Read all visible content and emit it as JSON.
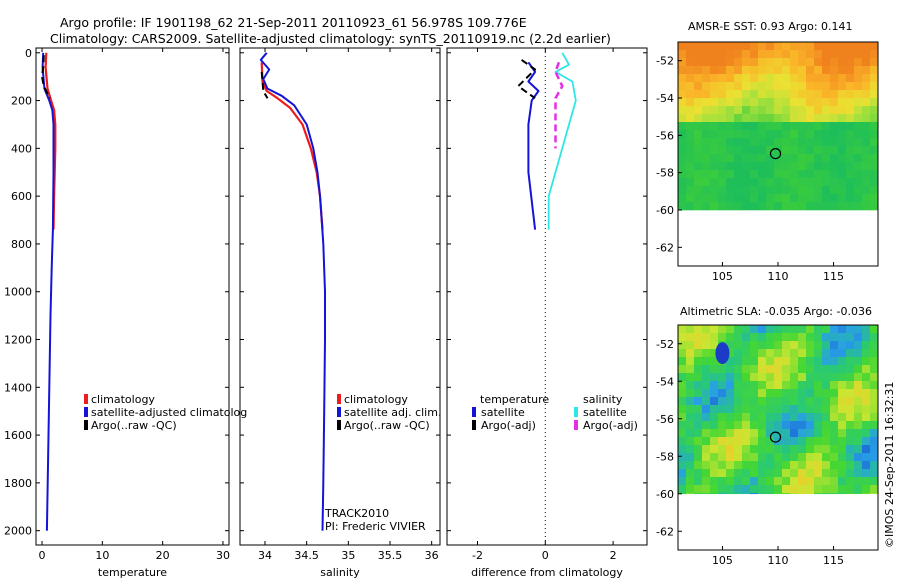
{
  "header": {
    "line1": "Argo profile: IF 1901198_62 21-Sep-2011 20110923_61 56.978S 109.776E",
    "line2": "Climatology: CARS2009. Satellite-adjusted climatology: synTS_20110919.nc (2.2d earlier)"
  },
  "colors": {
    "climatology": "#ee1c1c",
    "satellite": "#1414d6",
    "argo": "#000000",
    "sal_satellite": "#2ee6e6",
    "sal_argo": "#e62ee6"
  },
  "legend_temp": [
    "climatology",
    "satellite-adjusted climatolog",
    "Argo(..raw -QC)"
  ],
  "legend_sal": [
    "climatology",
    "satellite adj. clim.",
    "Argo(..raw -QC)"
  ],
  "legend_diff": {
    "temp_header": "temperature",
    "sal_header": "salinity",
    "temp_items": [
      "satellite",
      "Argo(-adj)"
    ],
    "sal_items": [
      "satellite",
      "Argo(-adj)"
    ]
  },
  "track_note": {
    "line1": "TRACK2010",
    "line2": "PI: Frederic VIVIER"
  },
  "map_sst": {
    "title": "AMSR-E SST: 0.93 Argo: 0.141"
  },
  "map_sla": {
    "title": "Altimetric SLA: -0.035 Argo: -0.036"
  },
  "stamp": "©IMOS 24-Sep-2011 16:32:31",
  "chart_data": [
    {
      "type": "line",
      "title": "",
      "xlabel": "temperature",
      "ylabel": "",
      "xlim": [
        -1,
        31
      ],
      "ylim": [
        2060,
        -20
      ],
      "xticks": [
        0,
        10,
        20,
        30
      ],
      "yticks": [
        0,
        200,
        400,
        600,
        800,
        1000,
        1200,
        1400,
        1600,
        1800,
        2000
      ],
      "series": [
        {
          "name": "climatology",
          "color": "#ee1c1c",
          "width": 2.2,
          "points": [
            [
              0.7,
              0
            ],
            [
              0.6,
              60
            ],
            [
              0.9,
              150
            ],
            [
              1.5,
              200
            ],
            [
              2.0,
              240
            ],
            [
              2.2,
              300
            ],
            [
              2.2,
              400
            ],
            [
              2.1,
              500
            ],
            [
              2.0,
              600
            ],
            [
              1.9,
              740
            ]
          ]
        },
        {
          "name": "satellite-adjusted climatology",
          "color": "#1414d6",
          "width": 2,
          "points": [
            [
              0.2,
              0
            ],
            [
              0.1,
              60
            ],
            [
              0.4,
              150
            ],
            [
              1.2,
              200
            ],
            [
              1.7,
              240
            ],
            [
              1.9,
              300
            ],
            [
              1.9,
              500
            ],
            [
              1.8,
              740
            ],
            [
              1.6,
              900
            ],
            [
              1.4,
              1100
            ],
            [
              1.2,
              1400
            ],
            [
              1.0,
              1700
            ],
            [
              0.8,
              2000
            ]
          ]
        },
        {
          "name": "Argo(..raw -QC)",
          "color": "#000000",
          "width": 2,
          "dash": "7,4",
          "points": [
            [
              0.3,
              10
            ],
            [
              0.2,
              60
            ],
            [
              0.0,
              100
            ],
            [
              0.3,
              140
            ],
            [
              1.3,
              190
            ]
          ]
        }
      ]
    },
    {
      "type": "line",
      "title": "",
      "xlabel": "salinity",
      "ylabel": "",
      "xlim": [
        33.7,
        36.1
      ],
      "ylim": [
        2060,
        -20
      ],
      "xticks": [
        34,
        34.5,
        35,
        35.5,
        36
      ],
      "series": [
        {
          "name": "climatology",
          "color": "#ee1c1c",
          "width": 2.2,
          "points": [
            [
              33.96,
              40
            ],
            [
              33.97,
              120
            ],
            [
              34.02,
              160
            ],
            [
              34.15,
              190
            ],
            [
              34.3,
              230
            ],
            [
              34.45,
              300
            ],
            [
              34.55,
              400
            ],
            [
              34.62,
              500
            ],
            [
              34.66,
              600
            ],
            [
              34.69,
              740
            ]
          ]
        },
        {
          "name": "satellite adj. clim.",
          "color": "#1414d6",
          "width": 2,
          "points": [
            [
              34.02,
              0
            ],
            [
              33.95,
              30
            ],
            [
              34.05,
              70
            ],
            [
              33.98,
              110
            ],
            [
              34.03,
              150
            ],
            [
              34.2,
              180
            ],
            [
              34.35,
              220
            ],
            [
              34.5,
              300
            ],
            [
              34.58,
              400
            ],
            [
              34.63,
              500
            ],
            [
              34.66,
              600
            ],
            [
              34.68,
              700
            ],
            [
              34.7,
              800
            ],
            [
              34.72,
              1000
            ],
            [
              34.72,
              1200
            ],
            [
              34.71,
              1500
            ],
            [
              34.7,
              1800
            ],
            [
              34.69,
              2000
            ]
          ]
        },
        {
          "name": "Argo(..raw -QC)",
          "color": "#000000",
          "width": 2,
          "dash": "7,4",
          "points": [
            [
              33.96,
              80
            ],
            [
              33.98,
              160
            ],
            [
              34.03,
              190
            ]
          ]
        }
      ]
    },
    {
      "type": "line",
      "title": "",
      "xlabel": "difference from climatology",
      "ylabel": "",
      "xlim": [
        -2.9,
        3.0
      ],
      "ylim": [
        2060,
        -20
      ],
      "xticks": [
        -2,
        0,
        2
      ],
      "series": [
        {
          "name": "temperature satellite",
          "color": "#1414d6",
          "width": 2,
          "points": [
            [
              -0.5,
              40
            ],
            [
              -0.3,
              80
            ],
            [
              -0.5,
              120
            ],
            [
              -0.2,
              160
            ],
            [
              -0.4,
              200
            ],
            [
              -0.5,
              300
            ],
            [
              -0.5,
              500
            ],
            [
              -0.3,
              740
            ]
          ]
        },
        {
          "name": "temperature Argo(-adj)",
          "color": "#000000",
          "width": 2,
          "dash": "7,4",
          "points": [
            [
              -0.7,
              30
            ],
            [
              -0.3,
              70
            ],
            [
              -0.8,
              140
            ],
            [
              -0.3,
              190
            ]
          ]
        },
        {
          "name": "salinity satellite",
          "color": "#2ee6e6",
          "width": 1.8,
          "points": [
            [
              0.5,
              0
            ],
            [
              0.7,
              50
            ],
            [
              0.3,
              80
            ],
            [
              0.8,
              120
            ],
            [
              0.9,
              200
            ],
            [
              0.7,
              300
            ],
            [
              0.4,
              450
            ],
            [
              0.1,
              600
            ],
            [
              0.1,
              740
            ]
          ]
        },
        {
          "name": "salinity Argo(-adj)",
          "color": "#e62ee6",
          "width": 2.5,
          "dash": "7,4",
          "points": [
            [
              0.4,
              40
            ],
            [
              0.3,
              80
            ],
            [
              0.5,
              140
            ],
            [
              0.3,
              190
            ],
            [
              0.3,
              250
            ],
            [
              0.3,
              400
            ]
          ]
        }
      ]
    },
    {
      "type": "heatmap",
      "title": "AMSR-E SST: 0.93 Argo: 0.141",
      "xlim": [
        101,
        119
      ],
      "ylim": [
        -63,
        -51
      ],
      "xticks": [
        105,
        110,
        115
      ],
      "yticks": [
        -52,
        -54,
        -56,
        -58,
        -60,
        -62
      ],
      "marker": [
        109.776,
        -56.978
      ],
      "data_south_limit": -60
    },
    {
      "type": "heatmap",
      "title": "Altimetric SLA: -0.035 Argo: -0.036",
      "xlim": [
        101,
        119
      ],
      "ylim": [
        -63,
        -51
      ],
      "xticks": [
        105,
        110,
        115
      ],
      "yticks": [
        -52,
        -54,
        -56,
        -58,
        -60,
        -62
      ],
      "marker": [
        109.776,
        -56.978
      ],
      "data_south_limit": -60
    }
  ]
}
